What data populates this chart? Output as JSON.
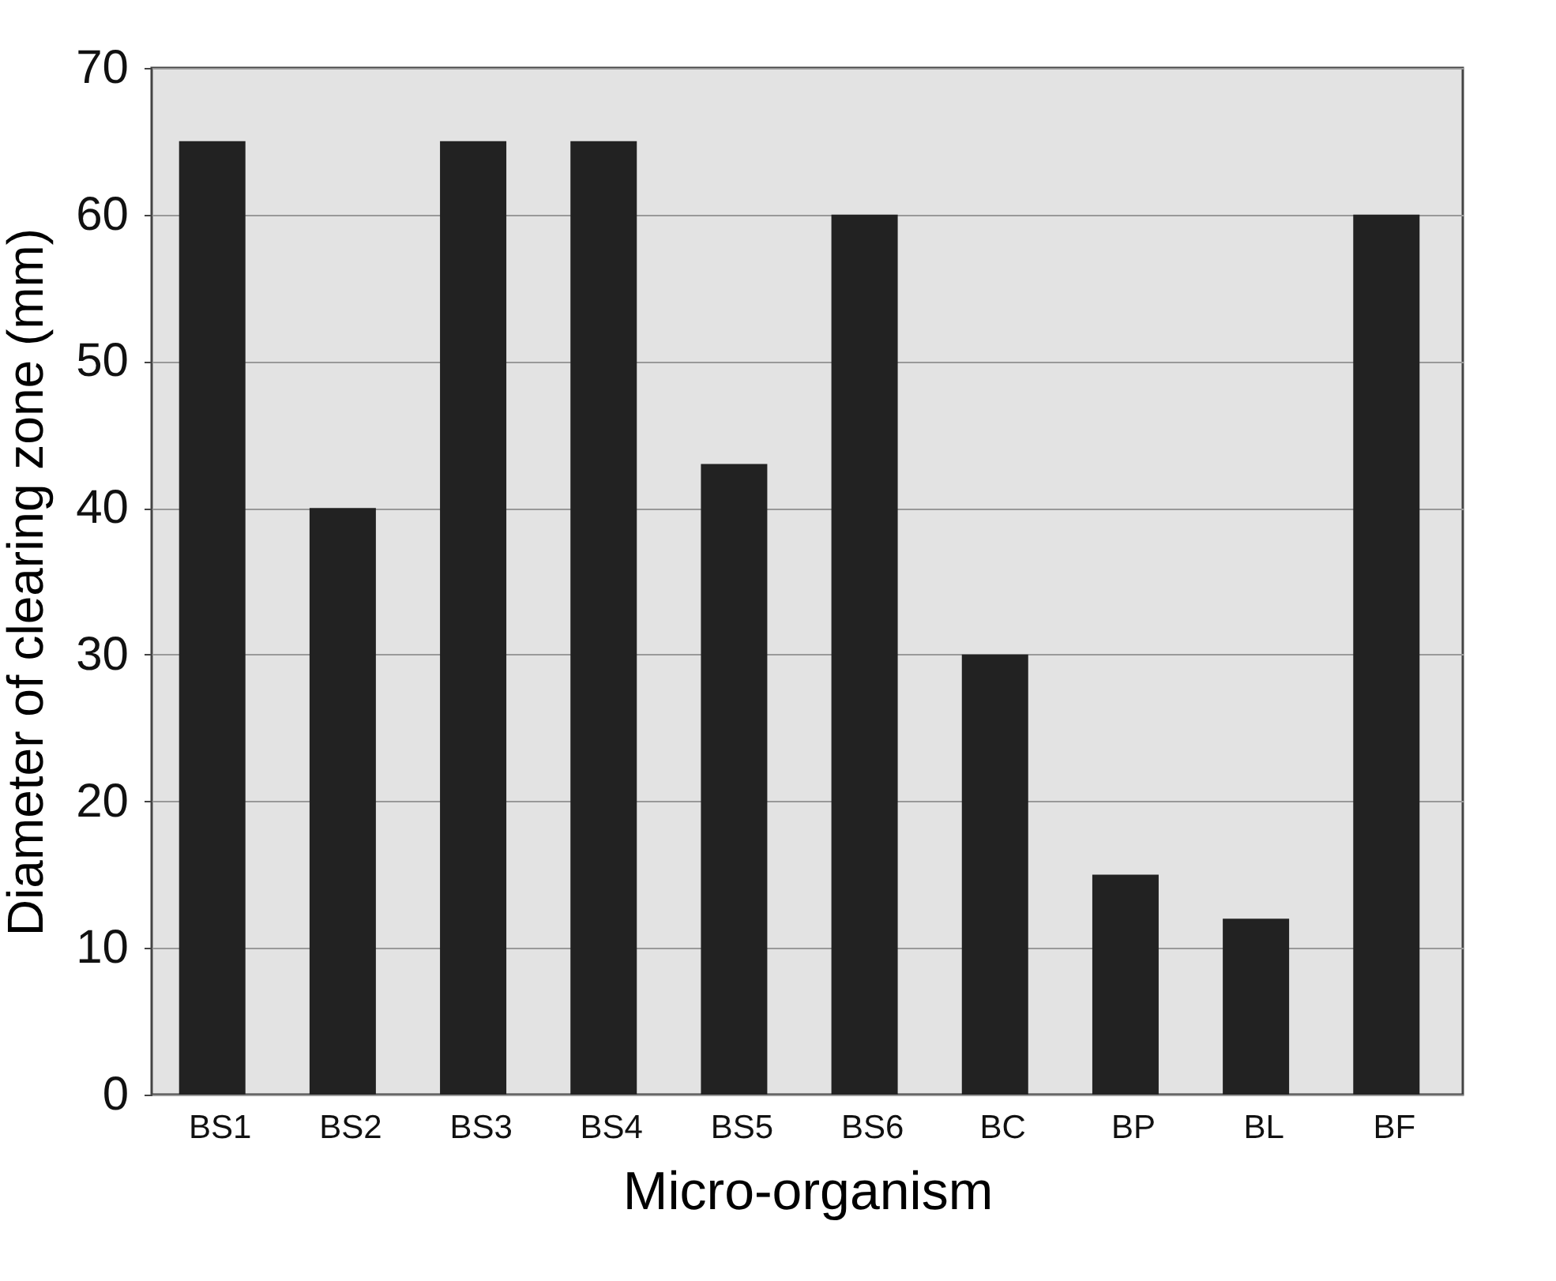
{
  "chart_data": {
    "type": "bar",
    "xlabel": "Micro-organism",
    "ylabel": "Diameter of clearing zone (mm)",
    "categories": [
      "BS1",
      "BS2",
      "BS3",
      "BS4",
      "BS5",
      "BS6",
      "BC",
      "BP",
      "BL",
      "BF"
    ],
    "values": [
      65,
      40,
      65,
      65,
      43,
      60,
      30,
      15,
      12,
      60
    ],
    "color": "#222222",
    "ylim": [
      0,
      70
    ],
    "yticks": [
      0,
      10,
      20,
      30,
      40,
      50,
      60,
      70
    ],
    "grid": "y"
  }
}
